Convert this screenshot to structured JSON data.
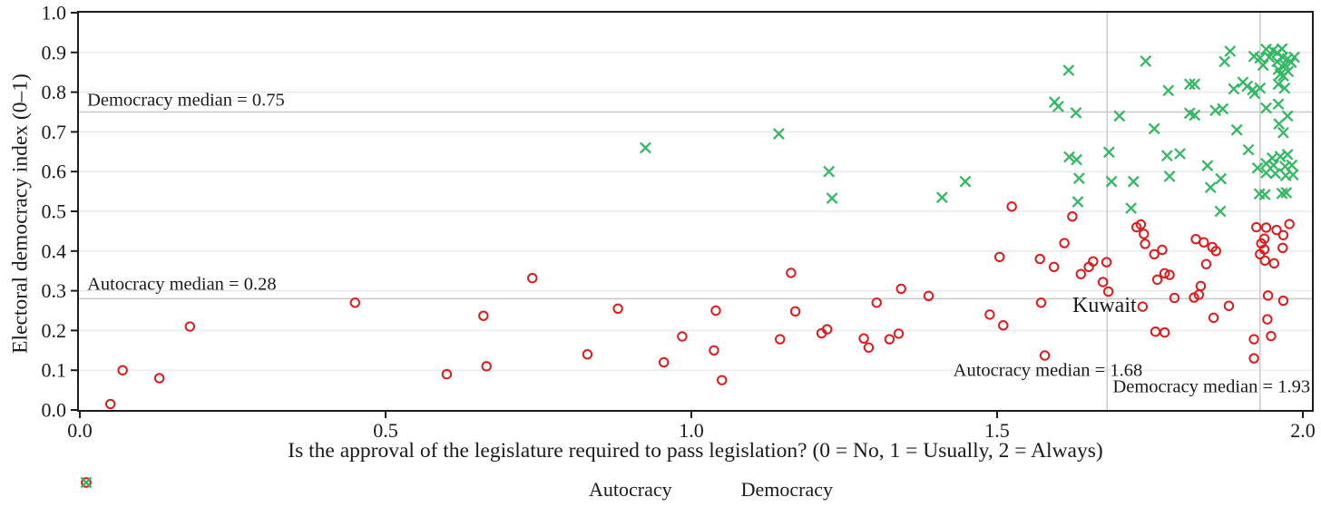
{
  "figure": {
    "x_axis_label": "Is the approval of the legislature required to pass legislation? (0 = No, 1 = Usually, 2 = Always)",
    "y_axis_label": "Electoral democracy index (0–1)"
  },
  "legend": {
    "items": [
      {
        "label": "Autocracy",
        "marker": "circle-icon",
        "color": "#e01a1c"
      },
      {
        "label": "Democracy",
        "marker": "x-icon",
        "color": "#33b864"
      }
    ]
  },
  "chart_data": {
    "type": "scatter",
    "xlabel": "Is the approval of the legislature required to pass legislation? (0 = No, 1 = Usually, 2 = Always)",
    "ylabel": "Electoral democracy index (0–1)",
    "xlim": [
      0,
      2
    ],
    "ylim": [
      0,
      1
    ],
    "grid": "horizontal-only",
    "x_ticks": [
      {
        "v": 0.0,
        "label": "0.0"
      },
      {
        "v": 0.5,
        "label": "0.5"
      },
      {
        "v": 1.0,
        "label": "1.0"
      },
      {
        "v": 1.5,
        "label": "1.5"
      },
      {
        "v": 2.0,
        "label": "2.0"
      }
    ],
    "y_ticks": [
      {
        "v": 0.0,
        "label": "0.0"
      },
      {
        "v": 0.1,
        "label": "0.1"
      },
      {
        "v": 0.2,
        "label": "0.2"
      },
      {
        "v": 0.3,
        "label": "0.3"
      },
      {
        "v": 0.4,
        "label": "0.4"
      },
      {
        "v": 0.5,
        "label": "0.5"
      },
      {
        "v": 0.6,
        "label": "0.6"
      },
      {
        "v": 0.7,
        "label": "0.7"
      },
      {
        "v": 0.8,
        "label": "0.8"
      },
      {
        "v": 0.9,
        "label": "0.9"
      },
      {
        "v": 1.0,
        "label": "1.0"
      }
    ],
    "median_lines": {
      "autocracy_x": 1.68,
      "democracy_x": 1.93,
      "autocracy_y": 0.28,
      "democracy_y": 0.75
    },
    "annotations": [
      {
        "text": "Democracy median = 0.75",
        "x": 0.012,
        "y": 0.782,
        "anchor": "start",
        "size": 20.5
      },
      {
        "text": "Autocracy median = 0.28",
        "x": 0.012,
        "y": 0.318,
        "anchor": "start",
        "size": 20.5
      },
      {
        "text": "Kuwait",
        "x": 1.728,
        "y": 0.263,
        "anchor": "end",
        "size": 24
      },
      {
        "text": "Autocracy median = 1.68",
        "x": 1.583,
        "y": 0.102,
        "anchor": "middle",
        "size": 20.5
      },
      {
        "text": "Democracy median = 1.93",
        "x": 2.012,
        "y": 0.06,
        "anchor": "end",
        "size": 20.5
      }
    ],
    "series": [
      {
        "name": "Autocracy",
        "marker": "circle",
        "color": "#e01a1c",
        "points": [
          [
            0.05,
            0.015
          ],
          [
            0.07,
            0.1
          ],
          [
            0.13,
            0.08
          ],
          [
            0.18,
            0.21
          ],
          [
            0.45,
            0.27
          ],
          [
            0.6,
            0.09
          ],
          [
            0.66,
            0.237
          ],
          [
            0.665,
            0.11
          ],
          [
            0.74,
            0.332
          ],
          [
            0.83,
            0.14
          ],
          [
            0.88,
            0.255
          ],
          [
            0.955,
            0.12
          ],
          [
            0.985,
            0.185
          ],
          [
            1.04,
            0.25
          ],
          [
            1.037,
            0.15
          ],
          [
            1.05,
            0.075
          ],
          [
            1.145,
            0.178
          ],
          [
            1.163,
            0.345
          ],
          [
            1.17,
            0.248
          ],
          [
            1.213,
            0.193
          ],
          [
            1.222,
            0.203
          ],
          [
            1.282,
            0.18
          ],
          [
            1.29,
            0.157
          ],
          [
            1.303,
            0.27
          ],
          [
            1.324,
            0.178
          ],
          [
            1.339,
            0.192
          ],
          [
            1.343,
            0.305
          ],
          [
            1.388,
            0.287
          ],
          [
            1.488,
            0.24
          ],
          [
            1.504,
            0.385
          ],
          [
            1.51,
            0.213
          ],
          [
            1.524,
            0.512
          ],
          [
            1.57,
            0.38
          ],
          [
            1.572,
            0.27
          ],
          [
            1.578,
            0.137
          ],
          [
            1.593,
            0.36
          ],
          [
            1.61,
            0.42
          ],
          [
            1.623,
            0.487
          ],
          [
            1.637,
            0.342
          ],
          [
            1.65,
            0.36
          ],
          [
            1.657,
            0.374
          ],
          [
            1.673,
            0.322
          ],
          [
            1.679,
            0.372
          ],
          [
            1.682,
            0.298
          ],
          [
            1.728,
            0.46
          ],
          [
            1.735,
            0.467
          ],
          [
            1.74,
            0.443
          ],
          [
            1.742,
            0.418
          ],
          [
            1.738,
            0.26
          ],
          [
            1.757,
            0.392
          ],
          [
            1.77,
            0.403
          ],
          [
            1.762,
            0.328
          ],
          [
            1.774,
            0.344
          ],
          [
            1.782,
            0.34
          ],
          [
            1.759,
            0.197
          ],
          [
            1.774,
            0.195
          ],
          [
            1.79,
            0.282
          ],
          [
            1.822,
            0.283
          ],
          [
            1.825,
            0.43
          ],
          [
            1.838,
            0.422
          ],
          [
            1.852,
            0.41
          ],
          [
            1.842,
            0.367
          ],
          [
            1.858,
            0.4
          ],
          [
            1.833,
            0.312
          ],
          [
            1.83,
            0.29
          ],
          [
            1.854,
            0.232
          ],
          [
            1.879,
            0.262
          ],
          [
            1.924,
            0.46
          ],
          [
            1.94,
            0.459
          ],
          [
            1.957,
            0.453
          ],
          [
            1.978,
            0.468
          ],
          [
            1.968,
            0.44
          ],
          [
            1.937,
            0.431
          ],
          [
            1.932,
            0.419
          ],
          [
            1.937,
            0.404
          ],
          [
            1.93,
            0.392
          ],
          [
            1.938,
            0.376
          ],
          [
            1.967,
            0.408
          ],
          [
            1.953,
            0.369
          ],
          [
            1.943,
            0.288
          ],
          [
            1.968,
            0.275
          ],
          [
            1.942,
            0.228
          ],
          [
            1.948,
            0.186
          ],
          [
            1.92,
            0.178
          ],
          [
            1.92,
            0.13
          ]
        ]
      },
      {
        "name": "Democracy",
        "marker": "x",
        "color": "#33b864",
        "points": [
          [
            0.925,
            0.66
          ],
          [
            1.143,
            0.695
          ],
          [
            1.225,
            0.6
          ],
          [
            1.23,
            0.533
          ],
          [
            1.41,
            0.535
          ],
          [
            1.448,
            0.575
          ],
          [
            1.594,
            0.775
          ],
          [
            1.6,
            0.764
          ],
          [
            1.617,
            0.855
          ],
          [
            1.629,
            0.748
          ],
          [
            1.618,
            0.637
          ],
          [
            1.63,
            0.63
          ],
          [
            1.634,
            0.583
          ],
          [
            1.632,
            0.524
          ],
          [
            1.683,
            0.649
          ],
          [
            1.687,
            0.575
          ],
          [
            1.7,
            0.74
          ],
          [
            1.723,
            0.575
          ],
          [
            1.719,
            0.508
          ],
          [
            1.743,
            0.878
          ],
          [
            1.757,
            0.708
          ],
          [
            1.78,
            0.804
          ],
          [
            1.778,
            0.64
          ],
          [
            1.782,
            0.588
          ],
          [
            1.799,
            0.645
          ],
          [
            1.815,
            0.82
          ],
          [
            1.823,
            0.82
          ],
          [
            1.815,
            0.747
          ],
          [
            1.823,
            0.742
          ],
          [
            1.844,
            0.615
          ],
          [
            1.849,
            0.56
          ],
          [
            1.865,
            0.5
          ],
          [
            1.866,
            0.582
          ],
          [
            1.857,
            0.754
          ],
          [
            1.869,
            0.758
          ],
          [
            1.872,
            0.877
          ],
          [
            1.881,
            0.903
          ],
          [
            1.892,
            0.705
          ],
          [
            1.887,
            0.808
          ],
          [
            1.902,
            0.825
          ],
          [
            1.909,
            0.815
          ],
          [
            1.918,
            0.806
          ],
          [
            1.921,
            0.797
          ],
          [
            1.911,
            0.655
          ],
          [
            1.926,
            0.609
          ],
          [
            1.94,
            0.62
          ],
          [
            1.95,
            0.634
          ],
          [
            1.963,
            0.638
          ],
          [
            1.975,
            0.643
          ],
          [
            1.94,
            0.597
          ],
          [
            1.955,
            0.595
          ],
          [
            1.972,
            0.59
          ],
          [
            1.984,
            0.592
          ],
          [
            1.952,
            0.616
          ],
          [
            1.971,
            0.613
          ],
          [
            1.982,
            0.616
          ],
          [
            1.929,
            0.544
          ],
          [
            1.938,
            0.542
          ],
          [
            1.966,
            0.545
          ],
          [
            1.973,
            0.547
          ],
          [
            1.94,
            0.76
          ],
          [
            1.96,
            0.77
          ],
          [
            1.961,
            0.72
          ],
          [
            1.975,
            0.74
          ],
          [
            1.968,
            0.698
          ],
          [
            1.92,
            0.89
          ],
          [
            1.93,
            0.886
          ],
          [
            1.935,
            0.868
          ],
          [
            1.94,
            0.908
          ],
          [
            1.945,
            0.888
          ],
          [
            1.951,
            0.905
          ],
          [
            1.958,
            0.899
          ],
          [
            1.958,
            0.877
          ],
          [
            1.96,
            0.857
          ],
          [
            1.963,
            0.845
          ],
          [
            1.966,
            0.909
          ],
          [
            1.967,
            0.888
          ],
          [
            1.968,
            0.841
          ],
          [
            1.971,
            0.868
          ],
          [
            1.975,
            0.884
          ],
          [
            1.976,
            0.852
          ],
          [
            1.981,
            0.875
          ],
          [
            1.986,
            0.888
          ],
          [
            1.96,
            0.82
          ],
          [
            1.97,
            0.81
          ],
          [
            1.93,
            0.81
          ]
        ]
      }
    ],
    "styles": {
      "panel_border_color": "#1c1c1c",
      "gridline_color": "#e8e8e8",
      "median_line_color": "#c8c8c8",
      "tick_color": "#1c1c1c",
      "text_color": "#1a1a1a"
    }
  }
}
